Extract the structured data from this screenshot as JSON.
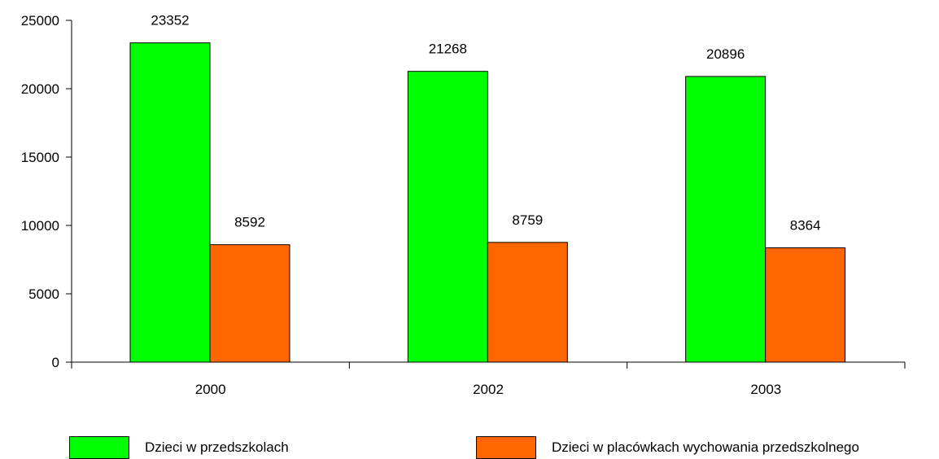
{
  "chart_data": {
    "type": "bar",
    "title": "",
    "xlabel": "",
    "ylabel": "",
    "categories": [
      "2000",
      "2002",
      "2003"
    ],
    "series": [
      {
        "name": "Dzieci w przedszkolach",
        "color": "#00ff00",
        "values": [
          23352,
          21268,
          20896
        ]
      },
      {
        "name": "Dzieci w placówkach wychowania przedszkolnego",
        "color": "#ff6600",
        "values": [
          8592,
          8759,
          8364
        ]
      }
    ],
    "ylim": [
      0,
      25000
    ],
    "yticks": [
      "0",
      "5000",
      "10000",
      "15000",
      "20000",
      "25000"
    ],
    "data_labels": true,
    "grid": false,
    "legend_position": "bottom"
  }
}
